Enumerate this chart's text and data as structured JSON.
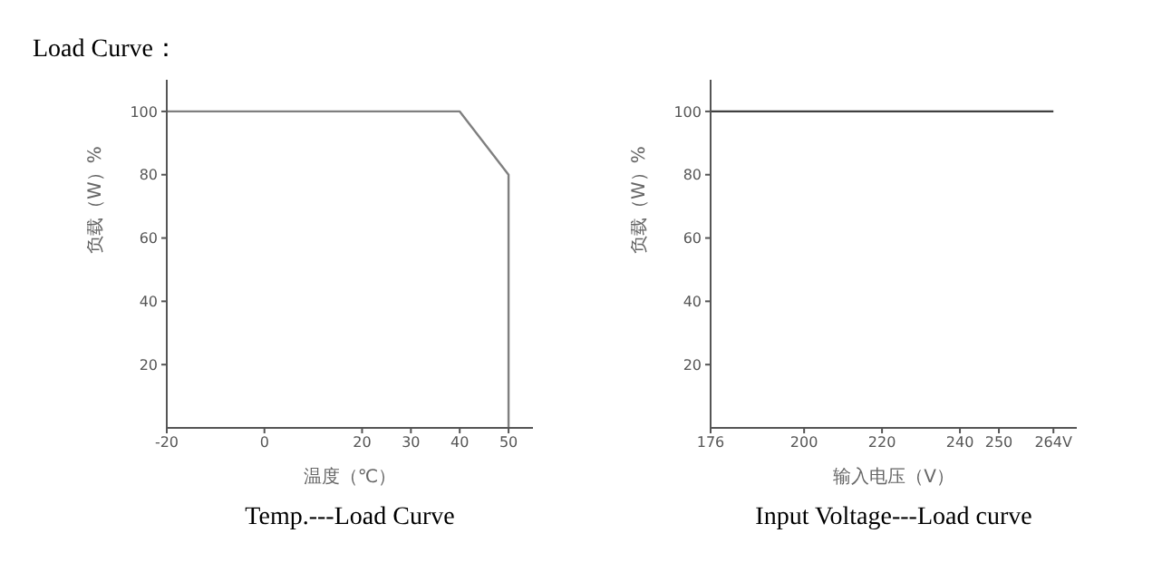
{
  "chart_data": [
    {
      "type": "line",
      "annotations": [
        "Load Curve："
      ],
      "title": "Temp.---Load Curve",
      "xlabel": "温度（℃）",
      "ylabel": "负载（W）%",
      "xlim": [
        -20,
        55
      ],
      "xticks": [
        -20,
        0,
        20,
        30,
        40,
        50
      ],
      "ylim": [
        0,
        110
      ],
      "yticks": [
        20,
        40,
        60,
        80,
        100
      ],
      "grid": false,
      "legend": false,
      "marker": "none",
      "line_style": "solid",
      "series": [
        {
          "color": "#7f7f7f",
          "x": [
            -20,
            40,
            50,
            50
          ],
          "values": [
            100,
            100,
            80,
            0
          ]
        }
      ]
    },
    {
      "type": "line",
      "title": "Input Voltage---Load curve",
      "xlabel": "输入电压（V）",
      "ylabel": "负载（W）%",
      "xlim": [
        176,
        270
      ],
      "xticks": [
        176,
        200,
        220,
        240,
        250,
        {
          "value": 264,
          "label": "264V"
        }
      ],
      "ylim": [
        0,
        110
      ],
      "yticks": [
        20,
        40,
        60,
        80,
        100
      ],
      "grid": false,
      "legend": false,
      "marker": "none",
      "line_style": "solid",
      "series": [
        {
          "color": "#404040",
          "x": [
            176,
            264
          ],
          "values": [
            100,
            100
          ]
        }
      ]
    }
  ]
}
